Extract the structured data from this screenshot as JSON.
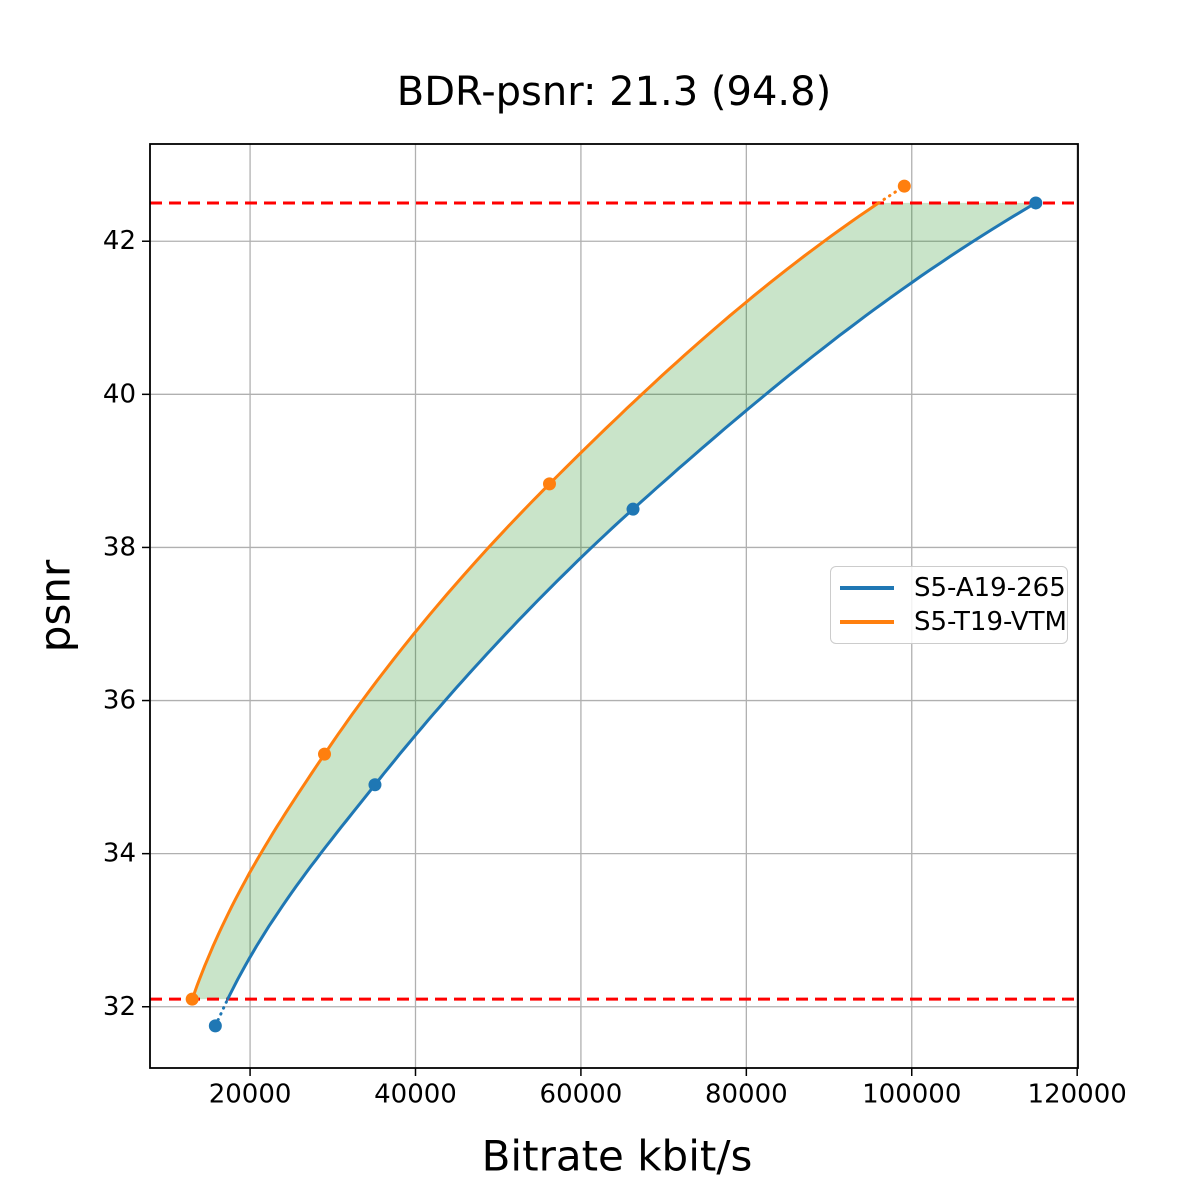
{
  "chart_data": {
    "type": "line",
    "title": "BDR-psnr: 21.3 (94.8)",
    "xlabel": "Bitrate kbit/s",
    "ylabel": "psnr",
    "xlim": [
      7900,
      120100
    ],
    "ylim": [
      31.2,
      43.27
    ],
    "x_ticks": [
      20000,
      40000,
      60000,
      80000,
      100000,
      120000
    ],
    "y_ticks": [
      32,
      34,
      36,
      38,
      40,
      42
    ],
    "grid": true,
    "grid_color": "#b0b0b0",
    "series": [
      {
        "name": "S5-A19-265",
        "color": "#1f77b4",
        "points": [
          [
            15800,
            31.75
          ],
          [
            35100,
            34.9
          ],
          [
            66300,
            38.5
          ],
          [
            115000,
            42.5
          ]
        ]
      },
      {
        "name": "S5-T19-VTM",
        "color": "#ff7f0e",
        "points": [
          [
            13000,
            32.1
          ],
          [
            29000,
            35.3
          ],
          [
            56200,
            38.83
          ],
          [
            99100,
            42.72
          ]
        ]
      }
    ],
    "overlap_lines": {
      "low": 32.1,
      "high": 42.5,
      "color": "#ff0000",
      "style": "dashed"
    },
    "fill_between": {
      "color": "#008000",
      "opacity": 0.21
    },
    "legend": {
      "position": "center-right"
    }
  }
}
